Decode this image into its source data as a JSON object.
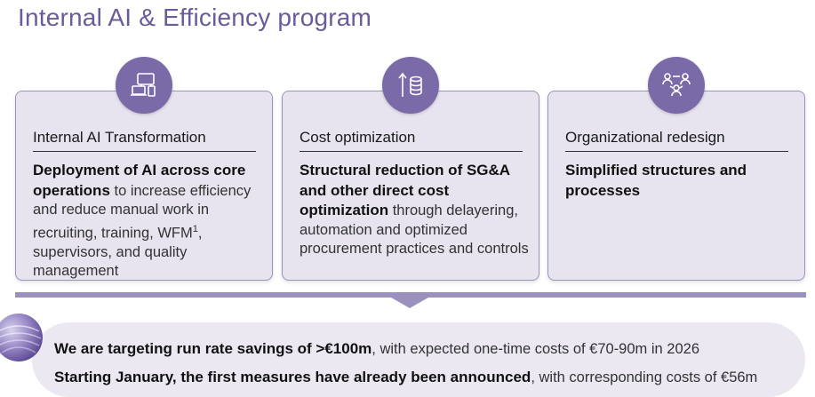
{
  "page": {
    "title": "Internal AI & Efficiency program"
  },
  "cards": [
    {
      "icon": "network-devices-icon",
      "heading": "Internal AI Transformation",
      "bold_text": "Deployment of AI across core operations",
      "body_text_a": " to increase efficiency and reduce manual work in recruiting, training, WFM",
      "footnote_mark": "1",
      "body_text_b": ", supervisors, and quality management"
    },
    {
      "icon": "arrow-up-coins-icon",
      "heading": "Cost optimization",
      "bold_text": "Structural reduction of SG&A and other direct cost optimization",
      "body_text": " through delayering, automation and optimized procurement practices and controls"
    },
    {
      "icon": "people-structure-icon",
      "heading": "Organizational redesign",
      "bold_text": "Simplified structures and processes"
    }
  ],
  "banner": {
    "line1_bold": "We are targeting run rate savings of >€100m",
    "line1_rest": ", with expected one-time costs of €70-90m in 2026",
    "line2_bold": "Starting January, the first measures have already been announced",
    "line2_rest": ", with corresponding costs of €56m"
  },
  "colors": {
    "title": "#6b5b9a",
    "card_bg": "#e7e3ef",
    "card_border": "#9c93bd",
    "badge": "#7a6aa8",
    "banner_bg": "#ebe8f2"
  }
}
